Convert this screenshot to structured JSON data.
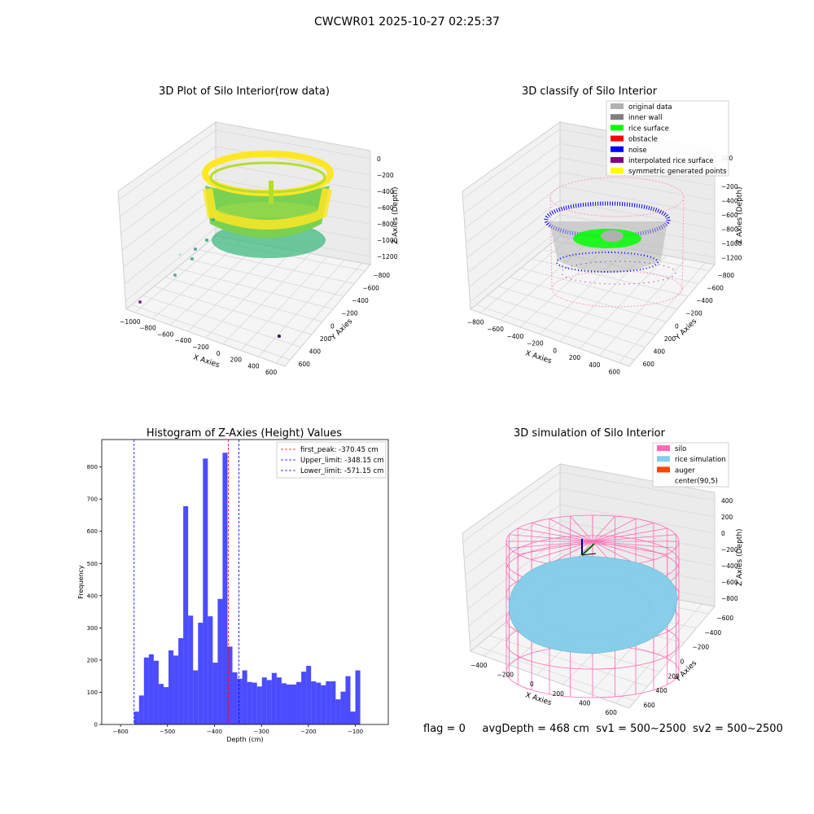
{
  "suptitle": "CWCWR01 2025-10-27 02:25:37",
  "footer": {
    "flag": "flag = 0",
    "avg_depth": "avgDepth = 468 cm",
    "sv1": "sv1 = 500~2500",
    "sv2": "sv2 = 500~2500"
  },
  "chart_data": [
    {
      "type": "scatter3d",
      "title": "3D Plot of Silo Interior(row data)",
      "xlabel": "X Axies",
      "ylabel": "Y Axies",
      "zlabel": "Z Axies (Depth)",
      "x_ticks": [
        "−1000",
        "−800",
        "−600",
        "−400",
        "−200",
        "0",
        "200",
        "400",
        "600"
      ],
      "y_ticks": [
        "−800",
        "−600",
        "−400",
        "−200",
        "0",
        "200",
        "400",
        "600"
      ],
      "z_ticks": [
        "0",
        "−200",
        "−400",
        "−600",
        "−800",
        "−1000",
        "−1200"
      ],
      "colormap": "viridis"
    },
    {
      "type": "scatter3d",
      "title": "3D classify of Silo Interior",
      "xlabel": "X Axies",
      "ylabel": "Y Axies",
      "zlabel": "Z Axies (Depth)",
      "x_ticks": [
        "−800",
        "−600",
        "−400",
        "−200",
        "0",
        "200",
        "400",
        "600"
      ],
      "y_ticks": [
        "−800",
        "−600",
        "−400",
        "−200",
        "0",
        "200",
        "400",
        "600"
      ],
      "z_ticks": [
        "200",
        "0",
        "−200",
        "−400",
        "−600",
        "−800",
        "−1000",
        "−1200"
      ],
      "legend": [
        {
          "label": "original data",
          "color": "#b0b0b0"
        },
        {
          "label": "inner wall",
          "color": "#808080"
        },
        {
          "label": "rice surface",
          "color": "#00ff00"
        },
        {
          "label": "obstacle",
          "color": "#ff0000"
        },
        {
          "label": "noise",
          "color": "#0000ff"
        },
        {
          "label": "interpolated rice surface",
          "color": "#800080"
        },
        {
          "label": "symmetric generated points",
          "color": "#ffff00"
        }
      ],
      "legend_position": "top-right"
    },
    {
      "type": "bar",
      "title": "Histogram of Z-Axies (Height) Values",
      "xlabel": "Depth (cm)",
      "ylabel": "Frequency",
      "xlim": [
        -640,
        -30
      ],
      "ylim": [
        0,
        885
      ],
      "x_ticks": [
        -600,
        -500,
        -400,
        -300,
        -200,
        -100
      ],
      "x_tick_labels": [
        "−600",
        "−500",
        "−400",
        "−300",
        "−200",
        "−100"
      ],
      "y_ticks": [
        0,
        100,
        200,
        300,
        400,
        500,
        600,
        700,
        800
      ],
      "bin_start": -571.15,
      "bin_width": 10.467,
      "values": [
        40,
        90,
        208,
        218,
        198,
        126,
        116,
        230,
        214,
        268,
        678,
        338,
        168,
        316,
        826,
        336,
        192,
        390,
        844,
        242,
        162,
        142,
        168,
        132,
        130,
        118,
        146,
        138,
        160,
        146,
        128,
        124,
        124,
        132,
        164,
        182,
        134,
        130,
        122,
        134,
        134,
        78,
        102,
        150,
        40,
        168
      ],
      "bar_color": "#0000ff",
      "bar_opacity": 0.7,
      "vlines": [
        {
          "x": -370.45,
          "label": "first_peak: -370.45 cm",
          "color": "#ff0000"
        },
        {
          "x": -348.15,
          "label": "Upper_limit: -348.15 cm",
          "color": "#0000ff"
        },
        {
          "x": -571.15,
          "label": "Lower_limit: -571.15 cm",
          "color": "#0000ff"
        }
      ],
      "legend_position": "top-right"
    },
    {
      "type": "surface3d",
      "title": "3D simulation of Silo Interior",
      "xlabel": "X Axies",
      "ylabel": "Y Axies",
      "zlabel": "Z Axies (Depth)",
      "x_ticks": [
        "−400",
        "−200",
        "0",
        "200",
        "400",
        "600"
      ],
      "y_ticks": [
        "−600",
        "−400",
        "−200",
        "0",
        "200",
        "400",
        "600"
      ],
      "z_ticks": [
        "400",
        "200",
        "0",
        "−200",
        "−400",
        "−600",
        "−800"
      ],
      "legend": [
        {
          "label": "silo",
          "color": "#ff69b4"
        },
        {
          "label": "rice simulation",
          "color": "#87ceeb"
        },
        {
          "label": "auger",
          "color": "#ff4500"
        },
        {
          "label": "center(90,5)",
          "color": "#ffffff"
        }
      ],
      "legend_position": "top-right"
    }
  ]
}
